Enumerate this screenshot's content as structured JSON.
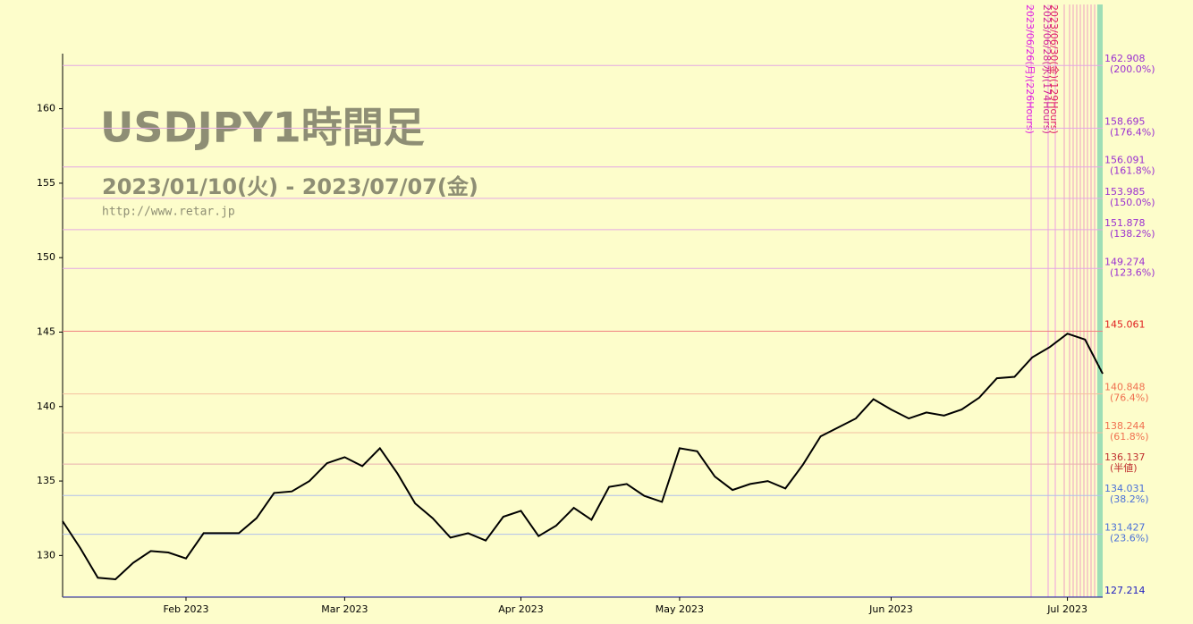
{
  "chart_data": {
    "type": "line",
    "title": "USDJPY1時間足",
    "subtitle": "2023/01/10(火) - 2023/07/07(金)",
    "source": "http://www.retar.jp",
    "color": "#000000",
    "categories": [
      null,
      null,
      null,
      null,
      null,
      null,
      null,
      "Feb 2023",
      null,
      null,
      null,
      null,
      null,
      null,
      null,
      null,
      "Mar 2023",
      null,
      null,
      null,
      null,
      null,
      null,
      null,
      null,
      null,
      "Apr 2023",
      null,
      null,
      null,
      null,
      null,
      null,
      null,
      null,
      "May 2023",
      null,
      null,
      null,
      null,
      null,
      null,
      null,
      null,
      null,
      null,
      null,
      "Jun 2023",
      null,
      null,
      null,
      null,
      null,
      null,
      null,
      null,
      null,
      "Jul 2023",
      null,
      null
    ],
    "values": [
      132.3,
      130.5,
      128.5,
      128.4,
      129.5,
      130.3,
      130.2,
      129.8,
      131.5,
      131.5,
      131.5,
      132.5,
      134.2,
      134.3,
      135.0,
      136.2,
      136.6,
      136.0,
      137.2,
      135.5,
      133.5,
      132.5,
      131.2,
      131.5,
      131.0,
      132.6,
      133.0,
      131.3,
      132.0,
      133.2,
      132.4,
      134.6,
      134.8,
      134.0,
      133.6,
      137.2,
      137.0,
      135.3,
      134.4,
      134.8,
      135.0,
      134.5,
      136.1,
      138.0,
      138.6,
      139.2,
      140.5,
      139.8,
      139.2,
      139.6,
      139.4,
      139.8,
      140.6,
      141.9,
      142.0,
      143.3,
      144.0,
      144.9,
      144.5,
      142.2
    ],
    "ylim": [
      127.2,
      163.7
    ],
    "yticks": [
      130,
      135,
      140,
      145,
      150,
      155,
      160
    ],
    "levels": [
      {
        "value": 162.908,
        "pct": "(200.0%)",
        "color": "#9b30d0",
        "line": "#e4a8e4"
      },
      {
        "value": 158.695,
        "pct": "(176.4%)",
        "color": "#9b30d0",
        "line": "#e4a8e4"
      },
      {
        "value": 156.091,
        "pct": "(161.8%)",
        "color": "#9b30d0",
        "line": "#e4a8e4"
      },
      {
        "value": 153.985,
        "pct": "(150.0%)",
        "color": "#9b30d0",
        "line": "#e4a8e4"
      },
      {
        "value": 151.878,
        "pct": "(138.2%)",
        "color": "#9b30d0",
        "line": "#e4a8e4"
      },
      {
        "value": 149.274,
        "pct": "(123.6%)",
        "color": "#9b30d0",
        "line": "#e4a8e4"
      },
      {
        "value": 145.061,
        "color": "#e02020",
        "line": "#f08080"
      },
      {
        "value": 140.848,
        "pct": "(76.4%)",
        "color": "#f07050",
        "line": "#f4c0a0"
      },
      {
        "value": 138.244,
        "pct": "(61.8%)",
        "color": "#f07050",
        "line": "#f4c0a0"
      },
      {
        "value": 136.137,
        "pct": "(半値)",
        "color": "#c03030",
        "line": "#e8b0b0"
      },
      {
        "value": 134.031,
        "pct": "(38.2%)",
        "color": "#4a70d8",
        "line": "#b0c0ec"
      },
      {
        "value": 131.427,
        "pct": "(23.6%)",
        "color": "#4a70d8",
        "line": "#b0c0ec"
      },
      {
        "value": 127.214,
        "color": "#2020c0",
        "line": "#4040c0"
      }
    ],
    "annotations": [
      {
        "text": "2023/06/26(月)(226Hours)",
        "color": "#e020e0"
      },
      {
        "text": "2023/06/28(水)(174Hours)",
        "color": "#d02090"
      },
      {
        "text": "2023/06/30(金)(129Hours)",
        "color": "#e02060"
      }
    ]
  }
}
